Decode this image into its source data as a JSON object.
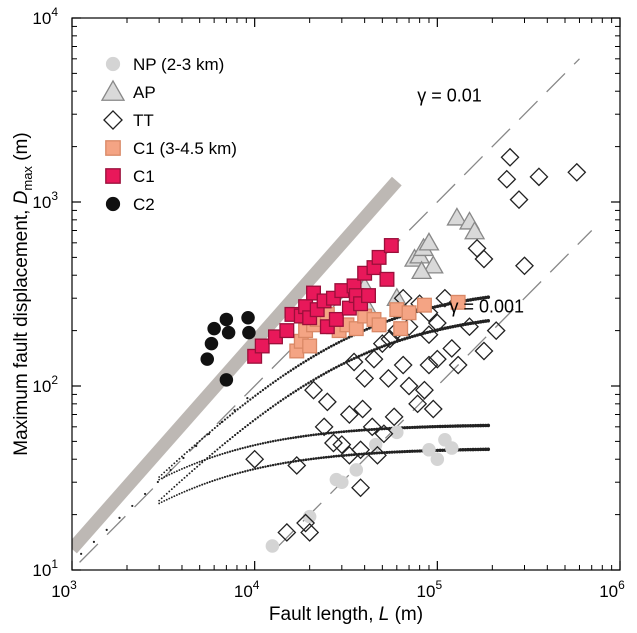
{
  "chart_data": {
    "type": "scatter",
    "title": "",
    "xlabel": "Fault length, L (m)",
    "ylabel": "Maximum fault displacement, Dmax (m)",
    "xlabel_parts": {
      "text": "Fault length, ",
      "symbol": "L",
      "unit": " (m)"
    },
    "ylabel_parts": {
      "text": "Maximum fault displacement, ",
      "symbol": "D",
      "sub": "max",
      "unit": " (m)"
    },
    "x_scale": "log",
    "y_scale": "log",
    "xlim": [
      1000,
      1000000
    ],
    "ylim": [
      10,
      10000
    ],
    "x_ticks": [
      {
        "base": "10",
        "exp": "3"
      },
      {
        "base": "10",
        "exp": "4"
      },
      {
        "base": "10",
        "exp": "5"
      },
      {
        "base": "10",
        "exp": "6"
      }
    ],
    "y_ticks": [
      {
        "base": "10",
        "exp": "1"
      },
      {
        "base": "10",
        "exp": "2"
      },
      {
        "base": "10",
        "exp": "3"
      },
      {
        "base": "10",
        "exp": "4"
      }
    ],
    "legend_position": "top-left",
    "annotations": [
      {
        "text": "γ = 0.01",
        "x": 150000,
        "y": 3800
      },
      {
        "text": "γ = 0.001",
        "x": 240000,
        "y": 270
      }
    ],
    "reference_lines": [
      {
        "name": "gamma-0.01",
        "style": "dashed",
        "color": "#888888",
        "points": [
          [
            1100,
            11
          ],
          [
            600000,
            6000
          ]
        ]
      },
      {
        "name": "gamma-0.001",
        "style": "dashed",
        "color": "#888888",
        "points": [
          [
            13000,
            13
          ],
          [
            700000,
            700
          ]
        ]
      }
    ],
    "band": {
      "color": "#bdb8b4",
      "points": [
        [
          1000,
          13
        ],
        [
          60000,
          1300
        ]
      ]
    },
    "curves": [
      {
        "name": "upper-1",
        "ref": 1000,
        "start": 3000,
        "end": 190000,
        "ymax": 352
      },
      {
        "name": "upper-2",
        "ref": 1000,
        "start": 3000,
        "end": 190000,
        "ymax": 262
      },
      {
        "name": "lower-1",
        "ref": 100,
        "start": 3000,
        "end": 190000,
        "ymax": 62
      },
      {
        "name": "lower-2",
        "ref": 100,
        "start": 3000,
        "end": 190000,
        "ymax": 46
      }
    ],
    "series": [
      {
        "name": "NP (2-3 km)",
        "marker": "circle",
        "color": "#d4d4d4",
        "stroke": "none",
        "points": [
          [
            12500,
            13.5
          ],
          [
            20000,
            19.5
          ],
          [
            28000,
            31
          ],
          [
            30000,
            30
          ],
          [
            36000,
            35
          ],
          [
            46000,
            48
          ],
          [
            60000,
            56
          ],
          [
            90000,
            45
          ],
          [
            100000,
            40
          ],
          [
            110000,
            51
          ],
          [
            120000,
            46
          ]
        ]
      },
      {
        "name": "AP",
        "marker": "triangle",
        "color": "#d9d9d9",
        "stroke": "#888888",
        "points": [
          [
            38000,
            320
          ],
          [
            40000,
            345
          ],
          [
            42000,
            260
          ],
          [
            75000,
            490
          ],
          [
            80000,
            510
          ],
          [
            84000,
            560
          ],
          [
            90000,
            600
          ],
          [
            95000,
            450
          ],
          [
            128000,
            820
          ],
          [
            150000,
            780
          ],
          [
            160000,
            690
          ],
          [
            82000,
            420
          ],
          [
            60000,
            300
          ]
        ]
      },
      {
        "name": "TT",
        "marker": "diamond",
        "color": "none",
        "stroke": "#222222",
        "points": [
          [
            10000,
            40
          ],
          [
            15000,
            16
          ],
          [
            19000,
            18
          ],
          [
            20000,
            16
          ],
          [
            17000,
            37
          ],
          [
            21000,
            95
          ],
          [
            24000,
            60
          ],
          [
            25000,
            82
          ],
          [
            27000,
            49
          ],
          [
            30000,
            48
          ],
          [
            33000,
            42
          ],
          [
            33000,
            70
          ],
          [
            38000,
            45
          ],
          [
            39000,
            75
          ],
          [
            40000,
            110
          ],
          [
            44000,
            60
          ],
          [
            47000,
            42
          ],
          [
            51000,
            55
          ],
          [
            54000,
            110
          ],
          [
            58000,
            68
          ],
          [
            65000,
            130
          ],
          [
            70000,
            100
          ],
          [
            78000,
            80
          ],
          [
            85000,
            95
          ],
          [
            90000,
            130
          ],
          [
            95000,
            75
          ],
          [
            100000,
            140
          ],
          [
            35000,
            135
          ],
          [
            45000,
            140
          ],
          [
            50000,
            170
          ],
          [
            55000,
            180
          ],
          [
            60000,
            200
          ],
          [
            70000,
            210
          ],
          [
            80000,
            280
          ],
          [
            90000,
            250
          ],
          [
            100000,
            220
          ],
          [
            110000,
            300
          ],
          [
            120000,
            160
          ],
          [
            130000,
            130
          ],
          [
            150000,
            210
          ],
          [
            165000,
            560
          ],
          [
            180000,
            490
          ],
          [
            180000,
            155
          ],
          [
            210000,
            200
          ],
          [
            250000,
            1750
          ],
          [
            240000,
            1330
          ],
          [
            280000,
            1030
          ],
          [
            300000,
            450
          ],
          [
            360000,
            1370
          ],
          [
            580000,
            1450
          ],
          [
            38000,
            28
          ],
          [
            65000,
            300
          ],
          [
            90000,
            190
          ]
        ]
      },
      {
        "name": "C1 (3-4.5 km)",
        "marker": "square",
        "color": "#f4a484",
        "stroke": "#d98866",
        "points": [
          [
            17000,
            155
          ],
          [
            18000,
            175
          ],
          [
            19000,
            200
          ],
          [
            20000,
            165
          ],
          [
            21000,
            215
          ],
          [
            22000,
            230
          ],
          [
            25000,
            245
          ],
          [
            27000,
            210
          ],
          [
            29000,
            200
          ],
          [
            32000,
            215
          ],
          [
            36000,
            205
          ],
          [
            40000,
            240
          ],
          [
            45000,
            230
          ],
          [
            48000,
            215
          ],
          [
            60000,
            260
          ],
          [
            63000,
            205
          ],
          [
            70000,
            250
          ],
          [
            85000,
            275
          ],
          [
            130000,
            285
          ]
        ]
      },
      {
        "name": "C1",
        "marker": "square",
        "color": "#e8185a",
        "stroke": "#9a0f3a",
        "points": [
          [
            10000,
            145
          ],
          [
            11000,
            165
          ],
          [
            13000,
            185
          ],
          [
            15000,
            200
          ],
          [
            16000,
            245
          ],
          [
            18000,
            240
          ],
          [
            19000,
            270
          ],
          [
            20000,
            235
          ],
          [
            21000,
            320
          ],
          [
            22000,
            260
          ],
          [
            24000,
            290
          ],
          [
            25000,
            210
          ],
          [
            27000,
            300
          ],
          [
            28000,
            230
          ],
          [
            30000,
            330
          ],
          [
            33000,
            265
          ],
          [
            35000,
            350
          ],
          [
            36000,
            310
          ],
          [
            38000,
            280
          ],
          [
            40000,
            410
          ],
          [
            42000,
            310
          ],
          [
            45000,
            440
          ],
          [
            48000,
            500
          ],
          [
            53000,
            380
          ],
          [
            56000,
            580
          ]
        ]
      },
      {
        "name": "C2",
        "marker": "circle",
        "color": "#111111",
        "stroke": "none",
        "points": [
          [
            5500,
            140
          ],
          [
            5800,
            170
          ],
          [
            6000,
            205
          ],
          [
            7000,
            230
          ],
          [
            7200,
            195
          ],
          [
            7000,
            108
          ],
          [
            9200,
            235
          ],
          [
            9300,
            195
          ]
        ]
      }
    ]
  }
}
